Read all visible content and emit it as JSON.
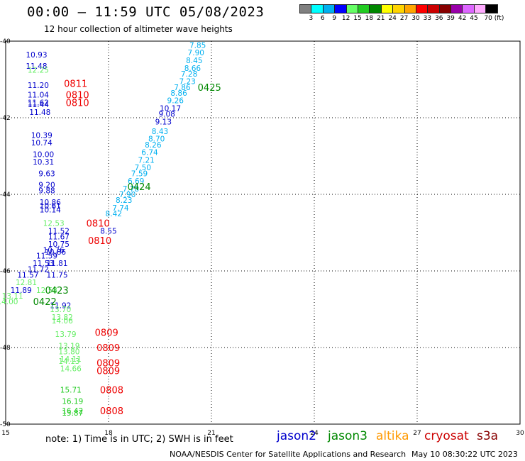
{
  "header": {
    "title": "00:00 – 11:59 UTC 05/08/2023",
    "subtitle": "12 hour collection of altimeter wave heights"
  },
  "colorbar": {
    "colors": [
      "#808080",
      "#00ffff",
      "#00b0f0",
      "#0000ff",
      "#66ff66",
      "#22cc22",
      "#008800",
      "#ffff00",
      "#ffd400",
      "#ffa500",
      "#ff0000",
      "#cc0000",
      "#880000",
      "#9900aa",
      "#dd66ff",
      "#ffaaff",
      "#000000"
    ],
    "labels": [
      "3",
      "6",
      "9",
      "12",
      "15",
      "18",
      "21",
      "24",
      "27",
      "30",
      "33",
      "36",
      "39",
      "42",
      "45",
      "70 (ft)"
    ]
  },
  "footer": {
    "note": "note:  1) Time is in UTC; 2) SWH is in feet",
    "credit": "NOAA/NESDIS Center for Satellite Applications and Research",
    "updated": "May 10 08:30:22 UTC 2023"
  },
  "chart_data": {
    "type": "scatter",
    "xlim": [
      15,
      30
    ],
    "ylim": [
      -50,
      -40
    ],
    "x_ticks": [
      "15",
      "18",
      "21",
      "24",
      "27",
      "30"
    ],
    "y_ticks": [
      "-40",
      "-42",
      "-44",
      "-46",
      "-48",
      "-50"
    ],
    "grid": true,
    "legend": [
      {
        "name": "jason2",
        "color": "#0000cc"
      },
      {
        "name": "jason3",
        "color": "#008800"
      },
      {
        "name": "altika",
        "color": "#ff9900"
      },
      {
        "name": "cryosat",
        "color": "#cc0000"
      },
      {
        "name": "s3a",
        "color": "#880000"
      }
    ],
    "points": [
      {
        "x": 20.6,
        "y": -40.1,
        "label": "7.85",
        "color": "#00b0f0"
      },
      {
        "x": 20.55,
        "y": -40.3,
        "label": "7.90",
        "color": "#00b0f0"
      },
      {
        "x": 20.5,
        "y": -40.5,
        "label": "8.45",
        "color": "#00b0f0"
      },
      {
        "x": 20.45,
        "y": -40.7,
        "label": "8.66",
        "color": "#00b0f0"
      },
      {
        "x": 20.35,
        "y": -40.85,
        "label": "7.28",
        "color": "#00b0f0"
      },
      {
        "x": 20.3,
        "y": -41.05,
        "label": "7.23",
        "color": "#00b0f0"
      },
      {
        "x": 20.15,
        "y": -41.2,
        "label": "7.86",
        "color": "#00b0f0"
      },
      {
        "x": 20.05,
        "y": -41.35,
        "label": "8.86",
        "color": "#00b0f0"
      },
      {
        "x": 19.95,
        "y": -41.55,
        "label": "9.26",
        "color": "#00b0f0"
      },
      {
        "x": 19.8,
        "y": -41.75,
        "label": "10.17",
        "color": "#0000cc"
      },
      {
        "x": 19.7,
        "y": -41.9,
        "label": "9.08",
        "color": "#0000cc"
      },
      {
        "x": 19.6,
        "y": -42.1,
        "label": "9.13",
        "color": "#0000cc"
      },
      {
        "x": 19.5,
        "y": -42.35,
        "label": "8.43",
        "color": "#00b0f0"
      },
      {
        "x": 19.4,
        "y": -42.55,
        "label": "8.70",
        "color": "#00b0f0"
      },
      {
        "x": 19.3,
        "y": -42.7,
        "label": "8.26",
        "color": "#00b0f0"
      },
      {
        "x": 19.2,
        "y": -42.9,
        "label": "6.74",
        "color": "#00b0f0"
      },
      {
        "x": 19.1,
        "y": -43.1,
        "label": "7.21",
        "color": "#00b0f0"
      },
      {
        "x": 19.0,
        "y": -43.3,
        "label": "7.50",
        "color": "#00b0f0"
      },
      {
        "x": 18.9,
        "y": -43.45,
        "label": "7.59",
        "color": "#00b0f0"
      },
      {
        "x": 18.8,
        "y": -43.65,
        "label": "6.69",
        "color": "#00b0f0"
      },
      {
        "x": 18.65,
        "y": -43.85,
        "label": "7.78",
        "color": "#00b0f0"
      },
      {
        "x": 18.55,
        "y": -44.0,
        "label": "7.90",
        "color": "#00b0f0"
      },
      {
        "x": 18.45,
        "y": -44.15,
        "label": "8.23",
        "color": "#00b0f0"
      },
      {
        "x": 18.35,
        "y": -44.35,
        "label": "7.74",
        "color": "#00b0f0"
      },
      {
        "x": 18.15,
        "y": -44.5,
        "label": "8.42",
        "color": "#00b0f0"
      },
      {
        "x": 18.0,
        "y": -44.95,
        "label": "8.55",
        "color": "#0000cc"
      },
      {
        "x": 15.9,
        "y": -40.35,
        "label": "10.93",
        "color": "#0000cc"
      },
      {
        "x": 15.9,
        "y": -40.65,
        "label": "11.48",
        "color": "#0000cc"
      },
      {
        "x": 15.95,
        "y": -40.75,
        "label": "12.25",
        "color": "#66ee66"
      },
      {
        "x": 15.95,
        "y": -41.15,
        "label": "11.20",
        "color": "#0000cc"
      },
      {
        "x": 15.95,
        "y": -41.4,
        "label": "11.04",
        "color": "#0000cc"
      },
      {
        "x": 15.95,
        "y": -41.6,
        "label": "11.62",
        "color": "#0000cc"
      },
      {
        "x": 15.95,
        "y": -41.65,
        "label": "11.44",
        "color": "#0000cc"
      },
      {
        "x": 16.0,
        "y": -41.85,
        "label": "11.48",
        "color": "#0000cc"
      },
      {
        "x": 16.05,
        "y": -42.45,
        "label": "10.39",
        "color": "#0000cc"
      },
      {
        "x": 16.05,
        "y": -42.65,
        "label": "10.74",
        "color": "#0000cc"
      },
      {
        "x": 16.1,
        "y": -42.95,
        "label": "10.00",
        "color": "#0000cc"
      },
      {
        "x": 16.1,
        "y": -43.15,
        "label": "10.31",
        "color": "#0000cc"
      },
      {
        "x": 16.2,
        "y": -43.45,
        "label": "9.63",
        "color": "#0000cc"
      },
      {
        "x": 16.2,
        "y": -43.75,
        "label": "9.20",
        "color": "#0000cc"
      },
      {
        "x": 16.2,
        "y": -43.9,
        "label": "9.88",
        "color": "#0000cc"
      },
      {
        "x": 16.3,
        "y": -44.2,
        "label": "10.86",
        "color": "#0000cc"
      },
      {
        "x": 16.3,
        "y": -44.3,
        "label": "10.61",
        "color": "#0000cc"
      },
      {
        "x": 16.3,
        "y": -44.4,
        "label": "10.14",
        "color": "#0000cc"
      },
      {
        "x": 16.4,
        "y": -44.75,
        "label": "12.53",
        "color": "#66ee66"
      },
      {
        "x": 16.55,
        "y": -44.95,
        "label": "11.52",
        "color": "#0000cc"
      },
      {
        "x": 16.55,
        "y": -45.1,
        "label": "11.67",
        "color": "#0000cc"
      },
      {
        "x": 16.55,
        "y": -45.3,
        "label": "10.75",
        "color": "#0000cc"
      },
      {
        "x": 16.4,
        "y": -45.45,
        "label": "10.76",
        "color": "#0000cc"
      },
      {
        "x": 16.45,
        "y": -45.5,
        "label": "10.86",
        "color": "#0000cc"
      },
      {
        "x": 16.2,
        "y": -45.6,
        "label": "11.59",
        "color": "#0000cc"
      },
      {
        "x": 16.1,
        "y": -45.8,
        "label": "11.53",
        "color": "#0000cc"
      },
      {
        "x": 16.5,
        "y": -45.8,
        "label": "11.81",
        "color": "#0000cc"
      },
      {
        "x": 15.95,
        "y": -45.95,
        "label": "11.72",
        "color": "#0000cc"
      },
      {
        "x": 15.65,
        "y": -46.1,
        "label": "11.57",
        "color": "#0000cc"
      },
      {
        "x": 16.5,
        "y": -46.1,
        "label": "11.75",
        "color": "#0000cc"
      },
      {
        "x": 15.6,
        "y": -46.3,
        "label": "12.81",
        "color": "#66ee66"
      },
      {
        "x": 15.45,
        "y": -46.5,
        "label": "11.89",
        "color": "#0000cc"
      },
      {
        "x": 16.2,
        "y": -46.5,
        "label": "12.58",
        "color": "#66ee66"
      },
      {
        "x": 15.2,
        "y": -46.65,
        "label": "13.11",
        "color": "#66ee66"
      },
      {
        "x": 15.05,
        "y": -46.8,
        "label": "14.00",
        "color": "#66ee66"
      },
      {
        "x": 16.6,
        "y": -46.9,
        "label": "11.92",
        "color": "#0000cc"
      },
      {
        "x": 16.6,
        "y": -47.0,
        "label": "13.70",
        "color": "#66ee66"
      },
      {
        "x": 16.65,
        "y": -47.2,
        "label": "13.82",
        "color": "#66ee66"
      },
      {
        "x": 16.65,
        "y": -47.3,
        "label": "14.06",
        "color": "#66ee66"
      },
      {
        "x": 16.75,
        "y": -47.65,
        "label": "13.79",
        "color": "#66ee66"
      },
      {
        "x": 16.85,
        "y": -47.95,
        "label": "13.19",
        "color": "#66ee66"
      },
      {
        "x": 16.85,
        "y": -48.1,
        "label": "13.80",
        "color": "#66ee66"
      },
      {
        "x": 16.9,
        "y": -48.3,
        "label": "14.11",
        "color": "#66ee66"
      },
      {
        "x": 16.85,
        "y": -48.35,
        "label": "14.13",
        "color": "#66ee66"
      },
      {
        "x": 16.9,
        "y": -48.55,
        "label": "14.66",
        "color": "#66ee66"
      },
      {
        "x": 16.9,
        "y": -49.1,
        "label": "15.71",
        "color": "#22cc22"
      },
      {
        "x": 16.95,
        "y": -49.4,
        "label": "16.19",
        "color": "#22cc22"
      },
      {
        "x": 16.95,
        "y": -49.65,
        "label": "16.42",
        "color": "#22cc22"
      },
      {
        "x": 16.95,
        "y": -49.7,
        "label": "15.87",
        "color": "#22cc22"
      }
    ],
    "time_annotations": [
      {
        "x": 20.6,
        "y": -41.2,
        "label": "0425",
        "color": "#008800"
      },
      {
        "x": 18.55,
        "y": -43.8,
        "label": "0424",
        "color": "#008800"
      },
      {
        "x": 16.15,
        "y": -46.5,
        "label": "0423",
        "color": "#008800"
      },
      {
        "x": 15.8,
        "y": -46.8,
        "label": "0422",
        "color": "#008800"
      },
      {
        "x": 16.7,
        "y": -41.1,
        "label": "0811",
        "color": "#ee0000"
      },
      {
        "x": 16.75,
        "y": -41.4,
        "label": "0810",
        "color": "#ee0000"
      },
      {
        "x": 16.75,
        "y": -41.6,
        "label": "0810",
        "color": "#ee0000"
      },
      {
        "x": 17.35,
        "y": -44.75,
        "label": "0810",
        "color": "#ee0000"
      },
      {
        "x": 17.4,
        "y": -45.2,
        "label": "0810",
        "color": "#ee0000"
      },
      {
        "x": 17.6,
        "y": -47.6,
        "label": "0809",
        "color": "#ee0000"
      },
      {
        "x": 17.65,
        "y": -48.0,
        "label": "0809",
        "color": "#ee0000"
      },
      {
        "x": 17.65,
        "y": -48.4,
        "label": "0809",
        "color": "#ee0000"
      },
      {
        "x": 17.65,
        "y": -48.6,
        "label": "0809",
        "color": "#ee0000"
      },
      {
        "x": 17.75,
        "y": -49.1,
        "label": "0808",
        "color": "#ee0000"
      },
      {
        "x": 17.75,
        "y": -49.65,
        "label": "0808",
        "color": "#ee0000"
      }
    ]
  }
}
